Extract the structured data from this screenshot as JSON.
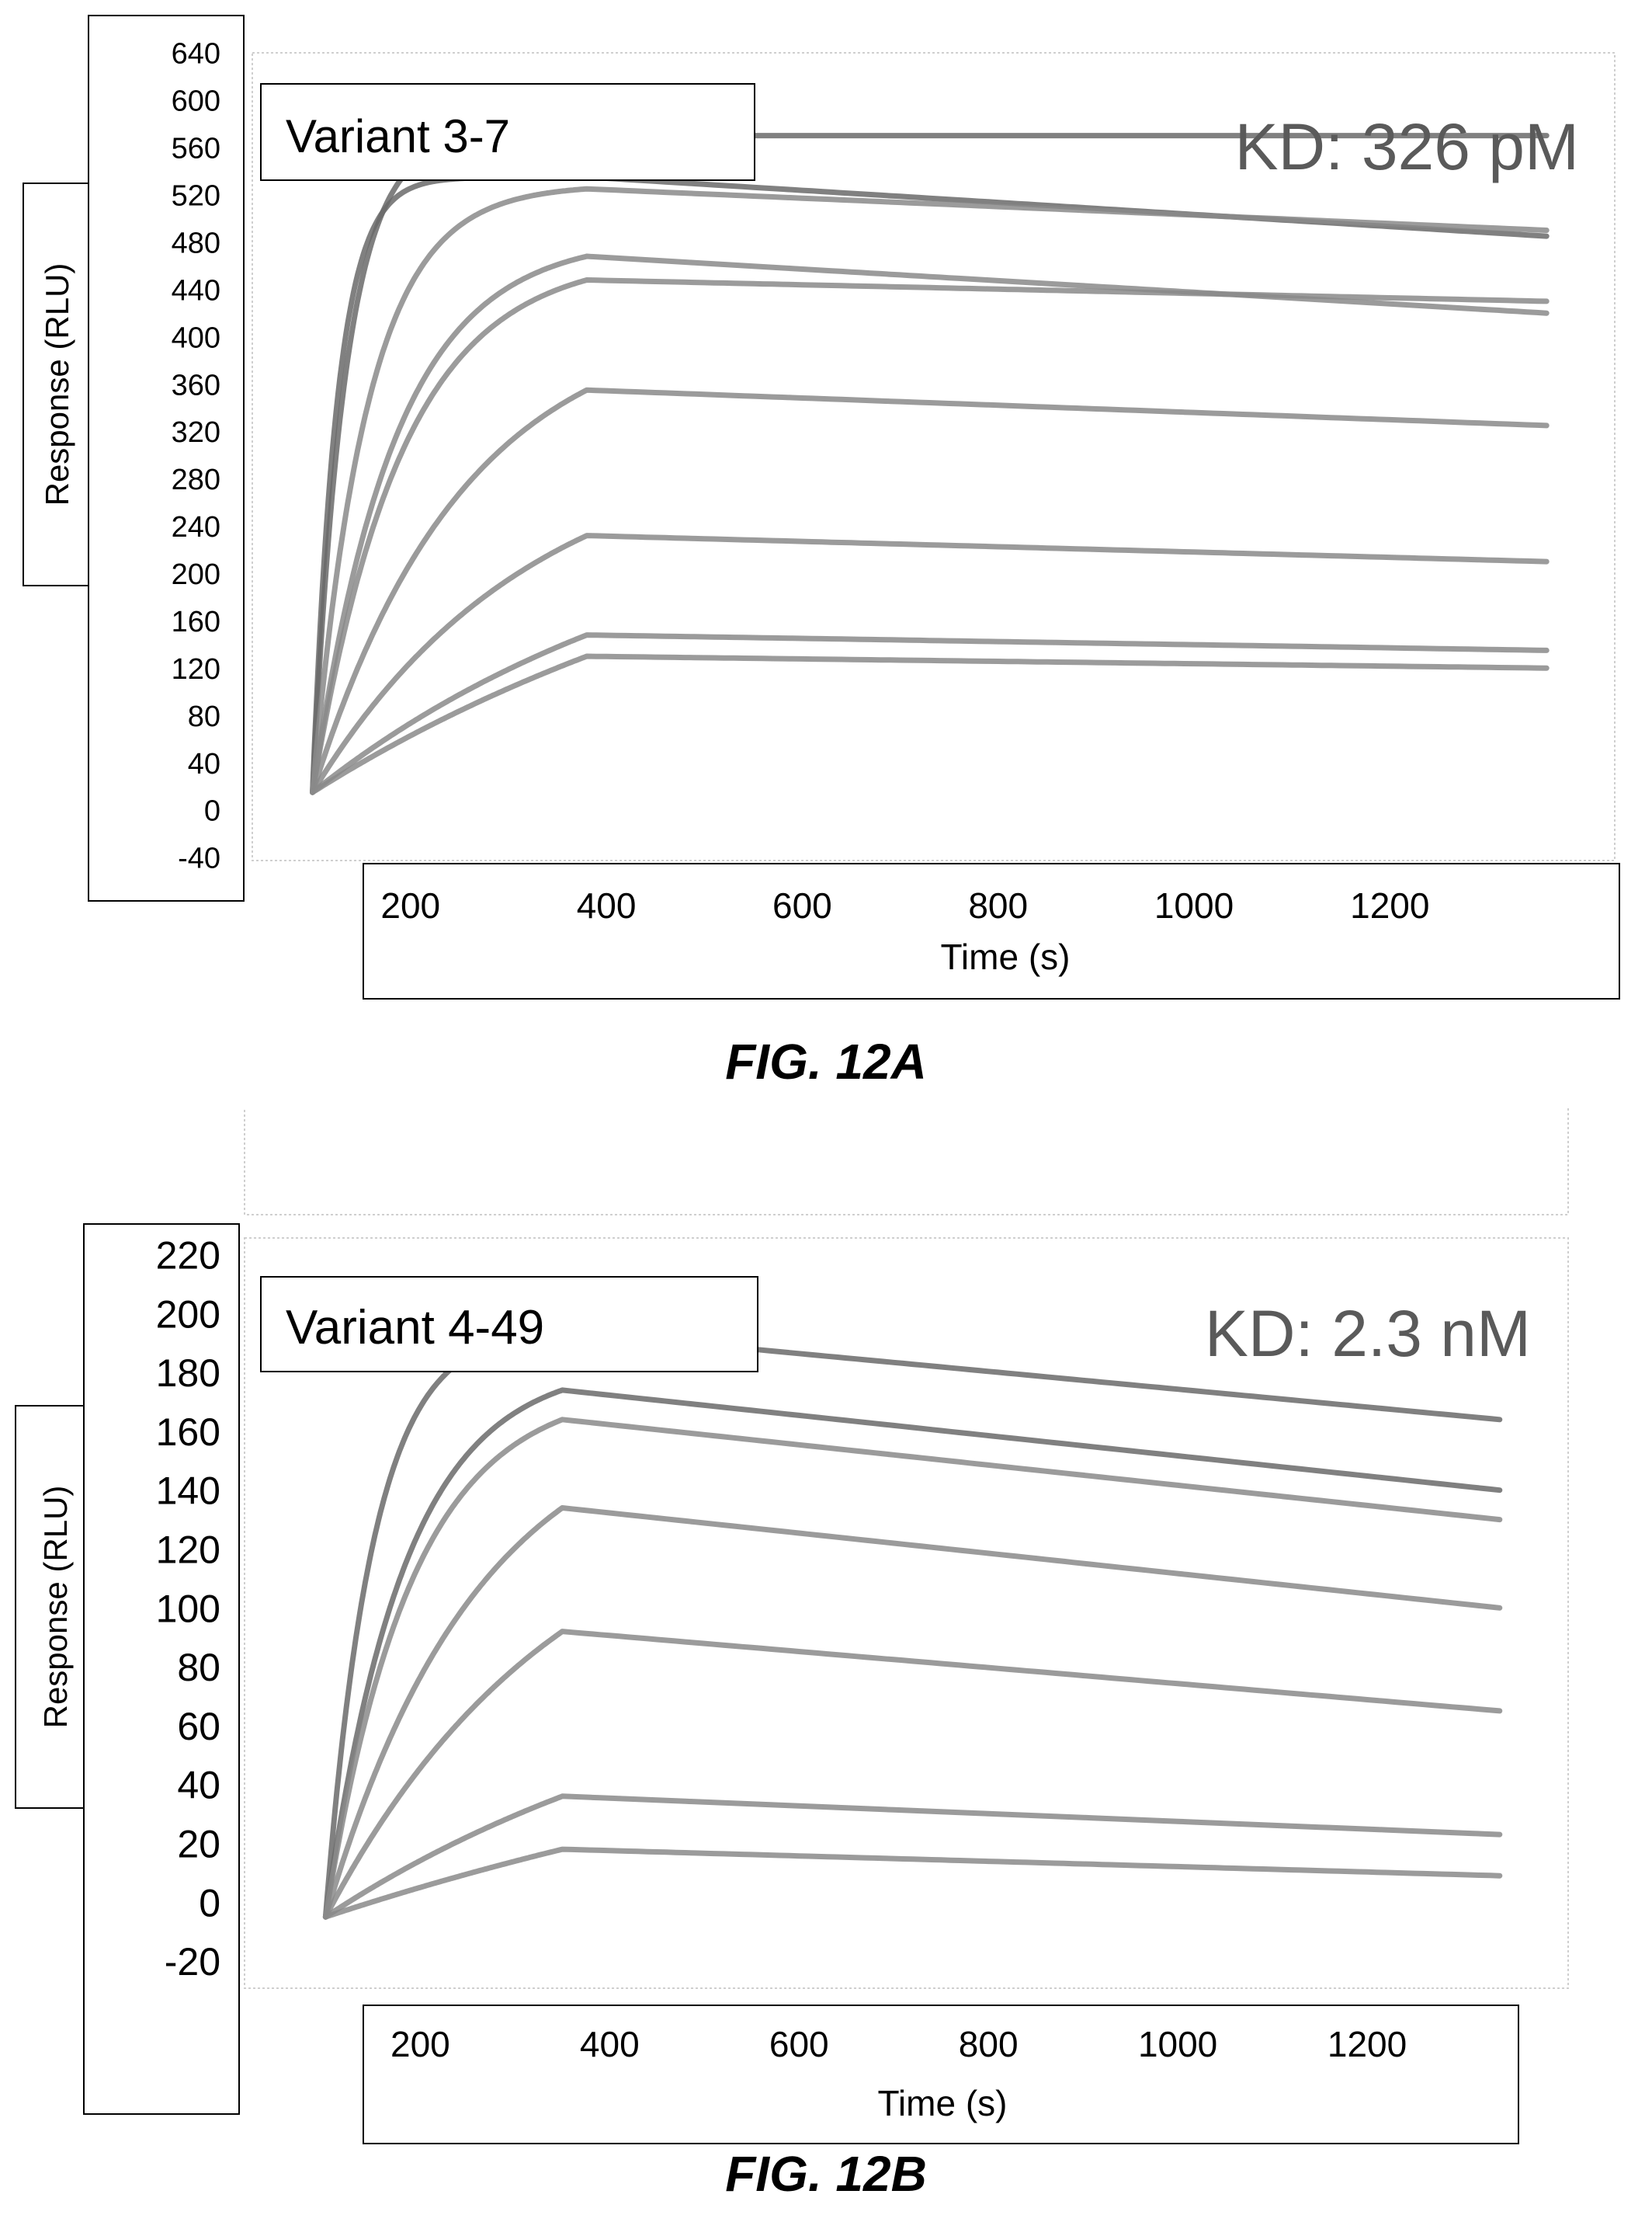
{
  "figures": [
    {
      "caption": "FIG. 12A"
    },
    {
      "caption": "FIG. 12B"
    }
  ],
  "chart_data": [
    {
      "type": "line",
      "title": "Variant 3-7",
      "annotation": "KD: 326 pM",
      "xlabel": "Time (s)",
      "ylabel": "Response (RLU)",
      "xlim": [
        90,
        1390
      ],
      "ylim": [
        -40,
        640
      ],
      "xticks": [
        200,
        400,
        600,
        800,
        1000,
        1200
      ],
      "yticks": [
        -40,
        0,
        40,
        80,
        120,
        160,
        200,
        240,
        280,
        320,
        360,
        400,
        440,
        480,
        520,
        560,
        600,
        640
      ],
      "association_start": 100,
      "dissociation_start": 380,
      "end_time": 1360,
      "grid": false,
      "line_color": "#7a7a7a",
      "series": [
        {
          "baseline": 15,
          "plateau": 535,
          "k_on": 0.04,
          "peak": 535,
          "end": 485
        },
        {
          "baseline": 15,
          "plateau": 570,
          "k_on": 0.03,
          "peak": 570,
          "end": 570
        },
        {
          "baseline": 15,
          "plateau": 545,
          "k_on": 0.018,
          "peak": 525,
          "end": 490
        },
        {
          "baseline": 15,
          "plateau": 480,
          "k_on": 0.012,
          "peak": 468,
          "end": 420
        },
        {
          "baseline": 15,
          "plateau": 460,
          "k_on": 0.011,
          "peak": 448,
          "end": 430
        },
        {
          "baseline": 15,
          "plateau": 420,
          "k_on": 0.0065,
          "peak": 355,
          "end": 325
        },
        {
          "baseline": 15,
          "plateau": 370,
          "k_on": 0.0045,
          "peak": 232,
          "end": 210
        },
        {
          "baseline": 15,
          "plateau": 330,
          "k_on": 0.0025,
          "peak": 148,
          "end": 135
        },
        {
          "baseline": 15,
          "plateau": 300,
          "k_on": 0.0018,
          "peak": 130,
          "end": 120
        }
      ]
    },
    {
      "type": "line",
      "title": "Variant 4-49",
      "annotation": "KD: 2.3 nM",
      "xlabel": "Time (s)",
      "ylabel": "Response (RLU)",
      "xlim": [
        80,
        1400
      ],
      "ylim": [
        -25,
        222
      ],
      "xticks": [
        200,
        400,
        600,
        800,
        1000,
        1200
      ],
      "yticks": [
        -20,
        0,
        20,
        40,
        60,
        80,
        100,
        120,
        140,
        160,
        180,
        200,
        220
      ],
      "association_start": 100,
      "dissociation_start": 350,
      "end_time": 1340,
      "grid": false,
      "line_color": "#7a7a7a",
      "series": [
        {
          "baseline": -5,
          "plateau": 205,
          "k_on": 0.02,
          "peak": 194,
          "end": 164
        },
        {
          "baseline": -5,
          "plateau": 190,
          "k_on": 0.012,
          "peak": 174,
          "end": 140
        },
        {
          "baseline": -5,
          "plateau": 185,
          "k_on": 0.011,
          "peak": 164,
          "end": 130
        },
        {
          "baseline": -5,
          "plateau": 180,
          "k_on": 0.0062,
          "peak": 134,
          "end": 100
        },
        {
          "baseline": -5,
          "plateau": 165,
          "k_on": 0.004,
          "peak": 92,
          "end": 65
        },
        {
          "baseline": -5,
          "plateau": 150,
          "k_on": 0.0022,
          "peak": 36,
          "end": 23
        },
        {
          "baseline": -5,
          "plateau": 140,
          "k_on": 0.0012,
          "peak": 18,
          "end": 9
        }
      ]
    }
  ]
}
